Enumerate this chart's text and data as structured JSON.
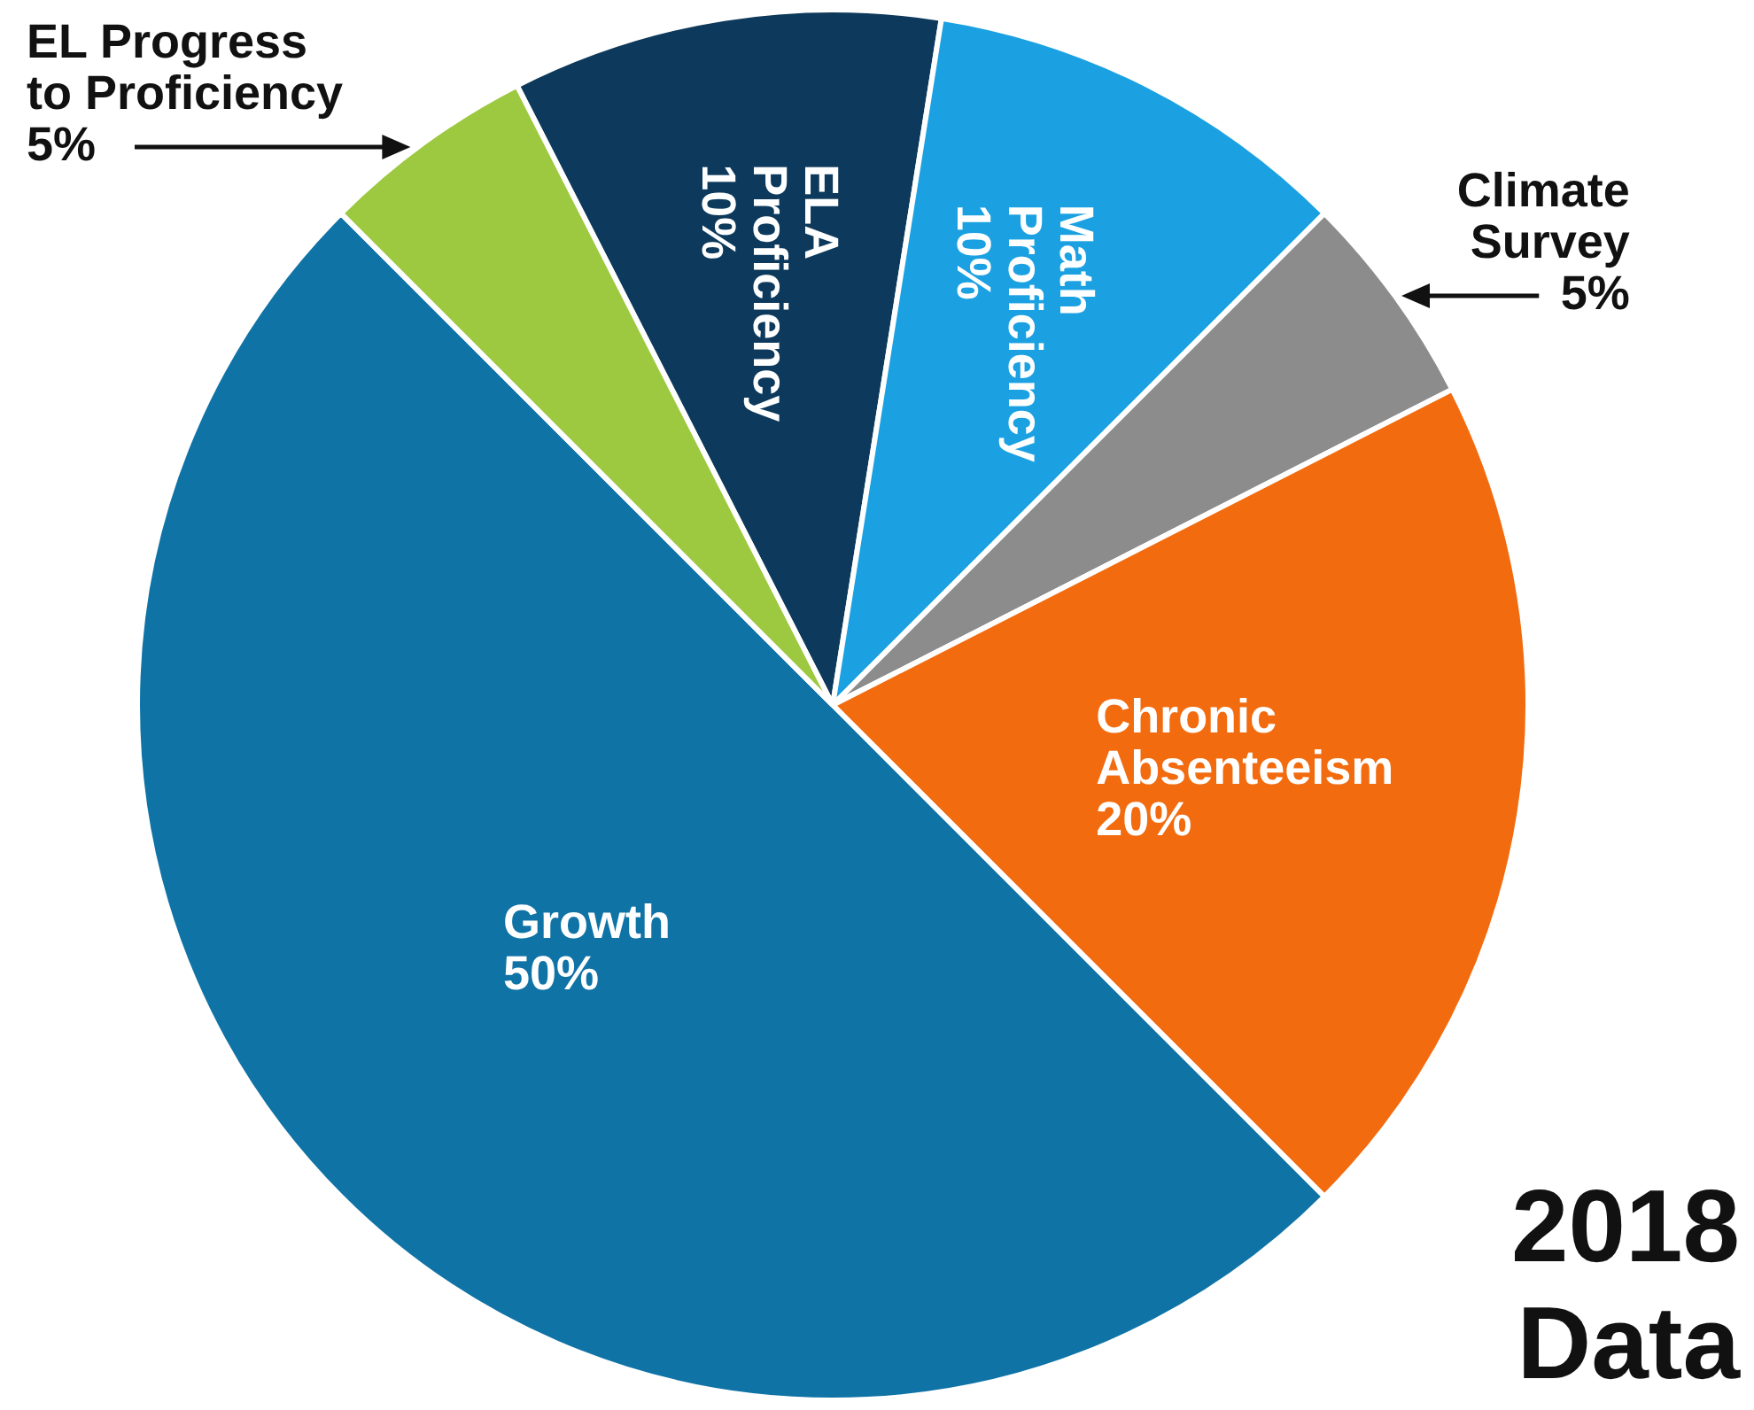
{
  "chart_data": {
    "type": "pie",
    "title": "2018 Data",
    "categories": [
      "ELA Proficiency",
      "Math Proficiency",
      "Climate Survey",
      "Chronic Absenteeism",
      "Growth",
      "EL Progress to Proficiency"
    ],
    "values": [
      10,
      10,
      5,
      20,
      50,
      5
    ],
    "colors": [
      "#0d3a5c",
      "#1ba1e2",
      "#8c8c8c",
      "#f26b0f",
      "#0f73a6",
      "#9dc940"
    ],
    "value_labels": [
      "10%",
      "10%",
      "5%",
      "20%",
      "50%",
      "5%"
    ],
    "legend": false
  }
}
